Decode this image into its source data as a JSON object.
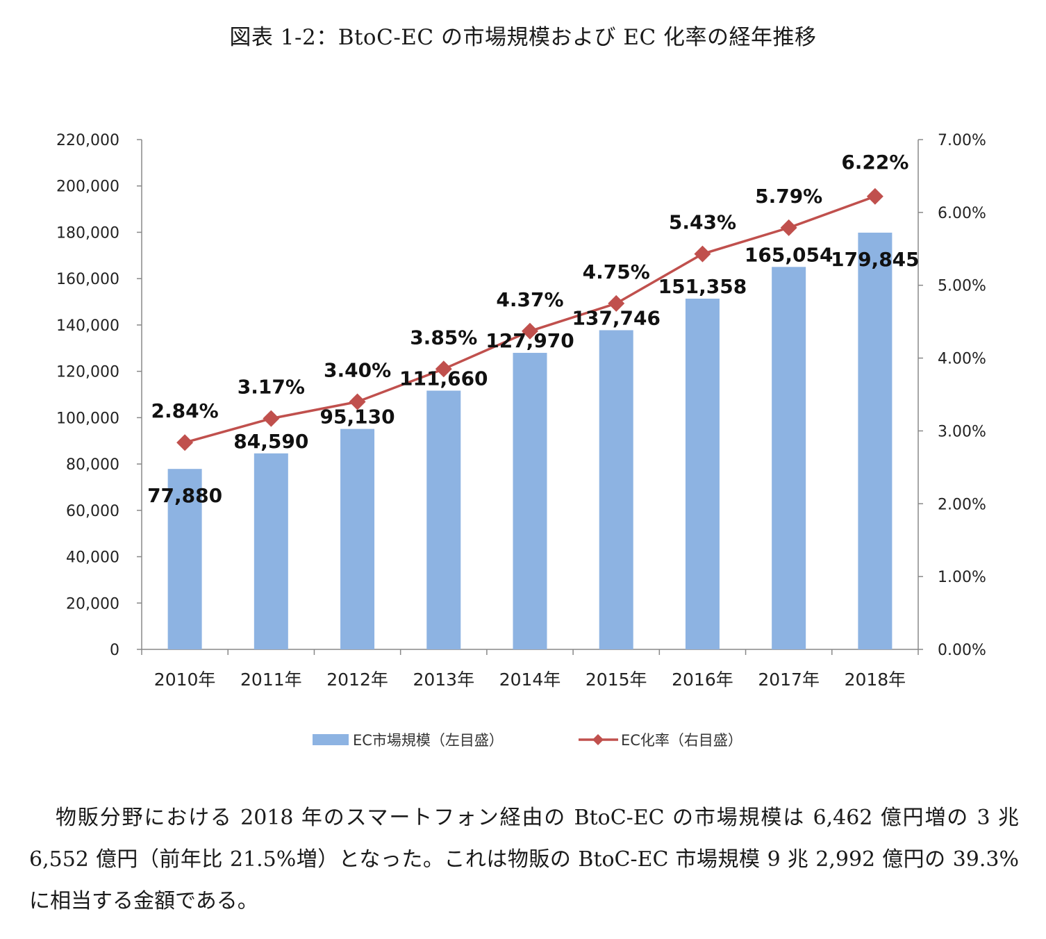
{
  "figure_title": "図表 1-2：BtoC-EC の市場規模および EC 化率の経年推移",
  "chart_data": {
    "type": "bar",
    "categories": [
      "2010年",
      "2011年",
      "2012年",
      "2013年",
      "2014年",
      "2015年",
      "2016年",
      "2017年",
      "2018年"
    ],
    "series": [
      {
        "name": "EC市場規模（左目盛）",
        "type": "bar",
        "axis": "left",
        "values": [
          77880,
          84590,
          95130,
          111660,
          127970,
          137746,
          151358,
          165054,
          179845
        ],
        "labels": [
          "77,880",
          "84,590",
          "95,130",
          "111,660",
          "127,970",
          "137,746",
          "151,358",
          "165,054",
          "179,845"
        ],
        "color": "#8db3e2"
      },
      {
        "name": "EC化率（右目盛）",
        "type": "line",
        "axis": "right",
        "values": [
          2.84,
          3.17,
          3.4,
          3.85,
          4.37,
          4.75,
          5.43,
          5.79,
          6.22
        ],
        "labels": [
          "2.84%",
          "3.17%",
          "3.40%",
          "3.85%",
          "4.37%",
          "4.75%",
          "5.43%",
          "5.79%",
          "6.22%"
        ],
        "color": "#c0504d"
      }
    ],
    "y_left": {
      "lim": [
        0,
        220000
      ],
      "ticks": [
        "0",
        "20,000",
        "40,000",
        "60,000",
        "80,000",
        "100,000",
        "120,000",
        "140,000",
        "160,000",
        "180,000",
        "200,000",
        "220,000"
      ]
    },
    "y_right": {
      "lim": [
        0,
        7
      ],
      "ticks": [
        "0.00%",
        "1.00%",
        "2.00%",
        "3.00%",
        "4.00%",
        "5.00%",
        "6.00%",
        "7.00%"
      ]
    },
    "highlight": {
      "bar_label_color": "#17365d",
      "line_label_color": "#c00000"
    },
    "grid": false,
    "legend_position": "bottom"
  },
  "body_text": "物販分野における 2018 年のスマートフォン経由の BtoC-EC の市場規模は 6,462 億円増の 3 兆 6,552 億円（前年比 21.5%増）となった。これは物販の BtoC-EC 市場規模 9 兆 2,992 億円の 39.3%に相当する金額である。"
}
